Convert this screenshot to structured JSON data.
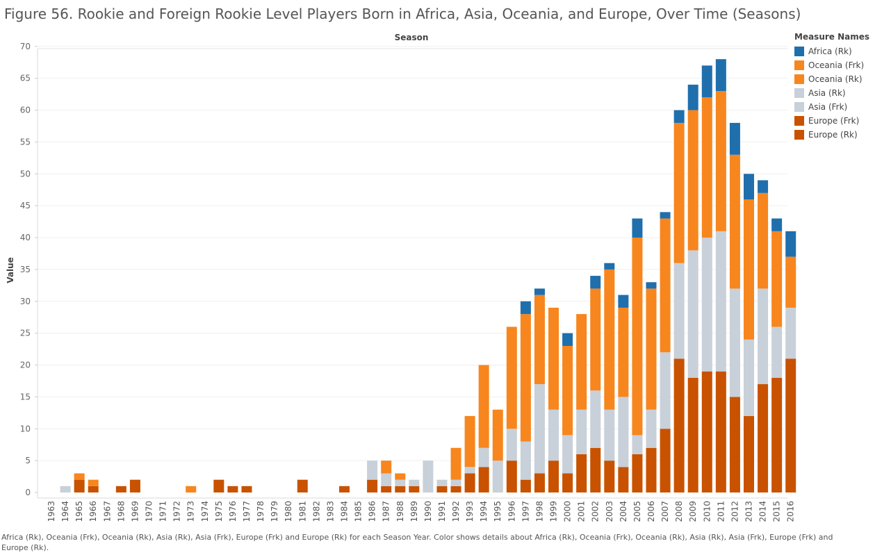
{
  "title": "Figure 56. Rookie and Foreign Rookie Level Players Born in Africa, Asia, Oceania, and Europe, Over Time (Seasons)",
  "caption": "Africa (Rk), Oceania (Frk), Oceania (Rk), Asia (Rk), Asia (Frk), Europe (Frk) and Europe (Rk) for each Season Year.  Color shows details about Africa (Rk), Oceania (Frk), Oceania (Rk), Asia (Rk), Asia (Frk), Europe (Frk) and Europe (Rk).",
  "legend": {
    "title": "Measure Names",
    "items": [
      {
        "label": "Africa (Rk)",
        "color": "#1f6fad"
      },
      {
        "label": "Oceania (Frk)",
        "color": "#f7861e"
      },
      {
        "label": "Oceania (Rk)",
        "color": "#f7861e"
      },
      {
        "label": "Asia (Rk)",
        "color": "#c8d0d9"
      },
      {
        "label": "Asia (Frk)",
        "color": "#c8d0d9"
      },
      {
        "label": "Europe (Frk)",
        "color": "#c85200"
      },
      {
        "label": "Europe (Rk)",
        "color": "#c85200"
      }
    ]
  },
  "chart_data": {
    "type": "bar",
    "stacked": true,
    "title": "Figure 56. Rookie and Foreign Rookie Level Players Born in Africa, Asia, Oceania, and Europe, Over Time (Seasons)",
    "xlabel": "Season",
    "ylabel": "Value",
    "ylim": [
      0,
      70
    ],
    "yticks": [
      0,
      5,
      10,
      15,
      20,
      25,
      30,
      35,
      40,
      45,
      50,
      55,
      60,
      65,
      70
    ],
    "grid": true,
    "legend_position": "right",
    "categories": [
      "1963",
      "1964",
      "1965",
      "1966",
      "1967",
      "1968",
      "1969",
      "1970",
      "1971",
      "1972",
      "1973",
      "1974",
      "1975",
      "1976",
      "1977",
      "1978",
      "1979",
      "1980",
      "1981",
      "1982",
      "1983",
      "1984",
      "1985",
      "1986",
      "1987",
      "1988",
      "1989",
      "1990",
      "1991",
      "1992",
      "1993",
      "1994",
      "1995",
      "1996",
      "1997",
      "1998",
      "1999",
      "2000",
      "2001",
      "2002",
      "2003",
      "2004",
      "2005",
      "2006",
      "2007",
      "2008",
      "2009",
      "2010",
      "2011",
      "2012",
      "2013",
      "2014",
      "2015",
      "2016"
    ],
    "series": [
      {
        "name": "Europe",
        "color": "#c85200",
        "values": [
          0,
          0,
          2,
          1,
          0,
          1,
          2,
          0,
          0,
          0,
          0,
          0,
          2,
          1,
          1,
          0,
          0,
          0,
          2,
          0,
          0,
          1,
          0,
          2,
          1,
          1,
          1,
          0,
          1,
          1,
          3,
          4,
          0,
          5,
          2,
          3,
          5,
          3,
          6,
          7,
          5,
          4,
          6,
          7,
          10,
          21,
          18,
          19,
          19,
          15,
          12,
          17,
          18,
          21
        ]
      },
      {
        "name": "Asia",
        "color": "#c8d0d9",
        "values": [
          0,
          1,
          0,
          0,
          0,
          0,
          0,
          0,
          0,
          0,
          0,
          0,
          0,
          0,
          0,
          0,
          0,
          0,
          0,
          0,
          0,
          0,
          0,
          3,
          2,
          1,
          1,
          5,
          1,
          1,
          1,
          3,
          5,
          5,
          6,
          14,
          8,
          6,
          7,
          9,
          8,
          11,
          3,
          6,
          12,
          15,
          20,
          21,
          22,
          17,
          12,
          15,
          8,
          8
        ]
      },
      {
        "name": "Oceania",
        "color": "#f7861e",
        "values": [
          0,
          0,
          1,
          1,
          0,
          0,
          0,
          0,
          0,
          0,
          1,
          0,
          0,
          0,
          0,
          0,
          0,
          0,
          0,
          0,
          0,
          0,
          0,
          0,
          2,
          1,
          0,
          0,
          0,
          5,
          8,
          13,
          8,
          16,
          20,
          14,
          16,
          14,
          15,
          16,
          22,
          14,
          31,
          19,
          21,
          22,
          22,
          22,
          22,
          21,
          22,
          15,
          15,
          8
        ]
      },
      {
        "name": "Africa",
        "color": "#1f6fad",
        "values": [
          0,
          0,
          0,
          0,
          0,
          0,
          0,
          0,
          0,
          0,
          0,
          0,
          0,
          0,
          0,
          0,
          0,
          0,
          0,
          0,
          0,
          0,
          0,
          0,
          0,
          0,
          0,
          0,
          0,
          0,
          0,
          0,
          0,
          0,
          2,
          1,
          0,
          2,
          0,
          2,
          1,
          2,
          3,
          1,
          1,
          2,
          4,
          5,
          5,
          5,
          4,
          2,
          2,
          4
        ]
      }
    ]
  }
}
